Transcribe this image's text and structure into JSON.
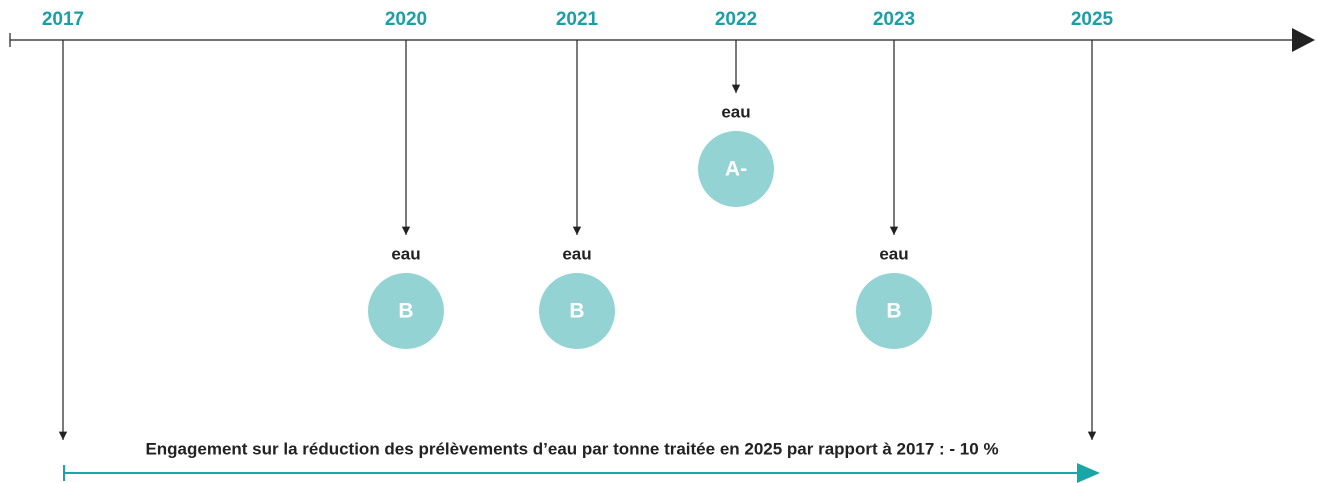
{
  "timeline": {
    "years": [
      "2017",
      "2020",
      "2021",
      "2022",
      "2023",
      "2025"
    ],
    "events": [
      {
        "label": "eau",
        "grade": "B"
      },
      {
        "label": "eau",
        "grade": "B"
      },
      {
        "label": "eau",
        "grade": "A-"
      },
      {
        "label": "eau",
        "grade": "B"
      }
    ],
    "commitment": "Engagement sur la réduction des prélèvements d’eau par tonne traitée en 2025 par rapport à 2017 : - 10 %"
  }
}
